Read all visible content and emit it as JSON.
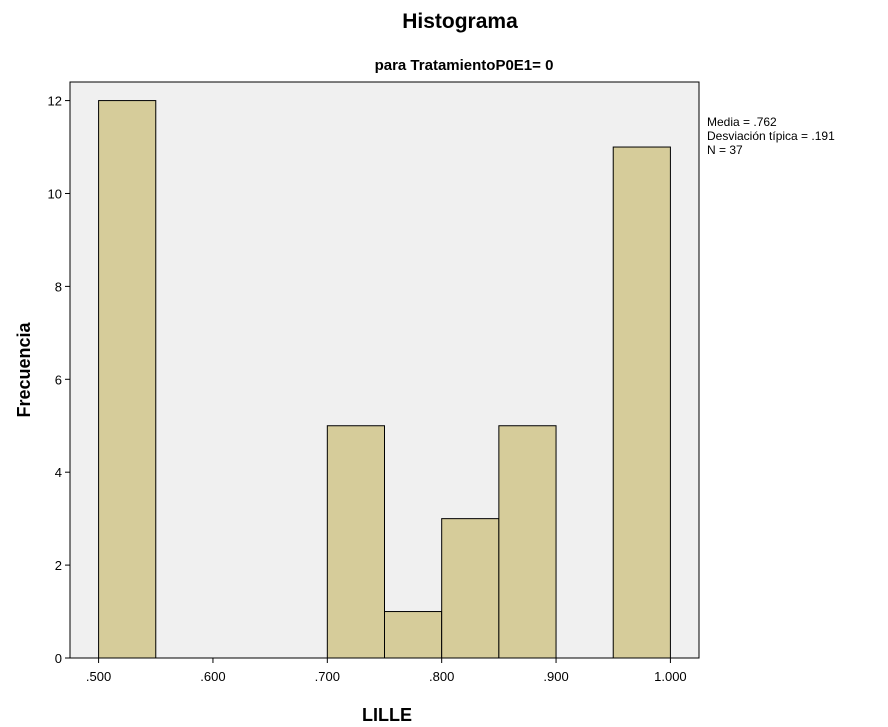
{
  "chart_data": {
    "type": "bar",
    "title": "Histograma",
    "subtitle": "para TratamientoP0E1= 0",
    "xlabel": "LILLE",
    "ylabel": "Frecuencia",
    "xlim": [
      0.475,
      1.025
    ],
    "ylim": [
      0,
      12.4
    ],
    "xticks": [
      0.5,
      0.6,
      0.7,
      0.8,
      0.9,
      1.0
    ],
    "xtick_labels": [
      ".500",
      ".600",
      ".700",
      ".800",
      ".900",
      "1.000"
    ],
    "yticks": [
      0,
      2,
      4,
      6,
      8,
      10,
      12
    ],
    "ytick_labels": [
      "0",
      "2",
      "4",
      "6",
      "8",
      "10",
      "12"
    ],
    "bins": [
      {
        "start": 0.5,
        "end": 0.55,
        "value": 12
      },
      {
        "start": 0.7,
        "end": 0.75,
        "value": 5
      },
      {
        "start": 0.75,
        "end": 0.8,
        "value": 1
      },
      {
        "start": 0.8,
        "end": 0.85,
        "value": 3
      },
      {
        "start": 0.85,
        "end": 0.9,
        "value": 5
      },
      {
        "start": 0.95,
        "end": 1.0,
        "value": 11
      }
    ],
    "grid": false,
    "legend": "none",
    "stats": [
      "Media = .762",
      "Desviación típica = .191",
      "N = 37"
    ],
    "colors": {
      "bar_fill": "#d6cc9a",
      "plot_background": "#f0f0f0",
      "axis": "#000000"
    }
  }
}
